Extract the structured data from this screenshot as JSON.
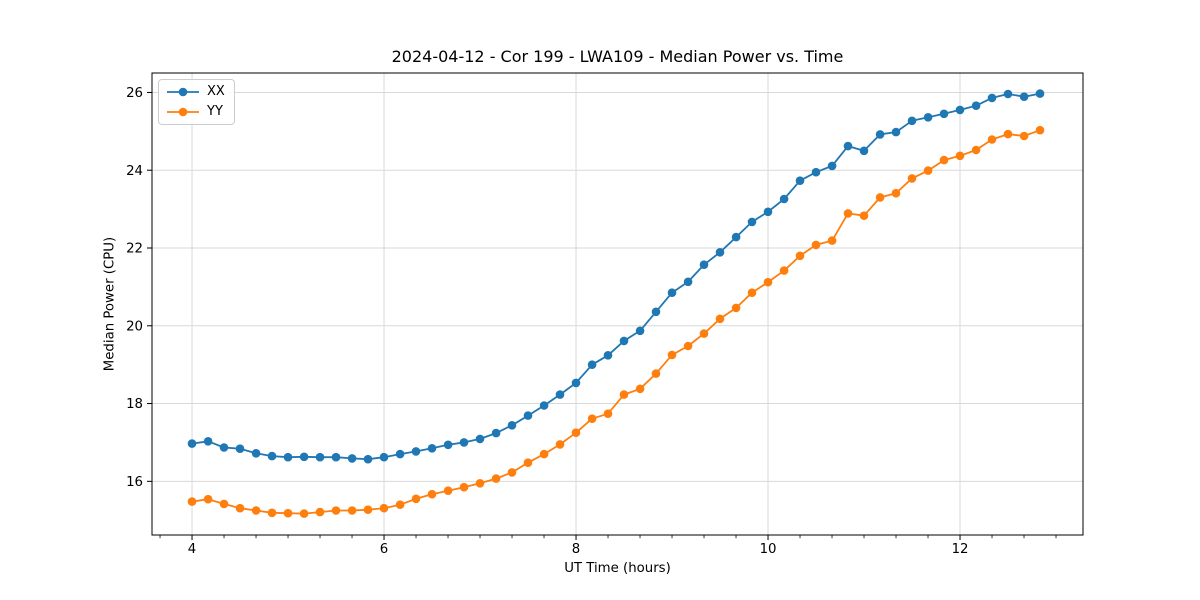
{
  "chart_data": {
    "type": "line",
    "title": "2024-04-12 - Cor 199 - LWA109 - Median Power vs. Time",
    "xlabel": "UT Time (hours)",
    "ylabel": "Median Power (CPU)",
    "xlim": [
      3.583,
      13.281
    ],
    "ylim": [
      14.62,
      26.5
    ],
    "x_major_ticks": [
      4,
      6,
      8,
      10,
      12
    ],
    "x_minor_tick_step": 0.33333,
    "y_major_ticks": [
      16,
      18,
      20,
      22,
      24,
      26
    ],
    "grid": true,
    "legend_position": "upper-left",
    "markers": "circle",
    "x": [
      4.0,
      4.167,
      4.333,
      4.5,
      4.667,
      4.833,
      5.0,
      5.167,
      5.333,
      5.5,
      5.667,
      5.833,
      6.0,
      6.167,
      6.333,
      6.5,
      6.667,
      6.833,
      7.0,
      7.167,
      7.333,
      7.5,
      7.667,
      7.833,
      8.0,
      8.167,
      8.333,
      8.5,
      8.667,
      8.833,
      9.0,
      9.167,
      9.333,
      9.5,
      9.667,
      9.833,
      10.0,
      10.167,
      10.333,
      10.5,
      10.667,
      10.833,
      11.0,
      11.167,
      11.333,
      11.5,
      11.667,
      11.833,
      12.0,
      12.167,
      12.333,
      12.5,
      12.667,
      12.833
    ],
    "series": [
      {
        "name": "XX",
        "color": "#1f77b4",
        "values": [
          16.97,
          17.03,
          16.87,
          16.84,
          16.72,
          16.65,
          16.62,
          16.63,
          16.62,
          16.62,
          16.59,
          16.57,
          16.62,
          16.7,
          16.77,
          16.85,
          16.94,
          17.0,
          17.09,
          17.24,
          17.44,
          17.69,
          17.95,
          18.23,
          18.53,
          19.0,
          19.24,
          19.61,
          19.87,
          20.36,
          20.85,
          21.13,
          21.57,
          21.89,
          22.28,
          22.67,
          22.93,
          23.26,
          23.73,
          23.95,
          24.11,
          24.62,
          24.5,
          24.92,
          24.98,
          25.27,
          25.36,
          25.45,
          25.55,
          25.66,
          25.86,
          25.96,
          25.89,
          25.97
        ]
      },
      {
        "name": "YY",
        "color": "#ff7f0e",
        "values": [
          15.48,
          15.54,
          15.42,
          15.31,
          15.25,
          15.19,
          15.18,
          15.17,
          15.21,
          15.25,
          15.25,
          15.27,
          15.31,
          15.4,
          15.55,
          15.67,
          15.76,
          15.85,
          15.95,
          16.07,
          16.23,
          16.48,
          16.7,
          16.95,
          17.25,
          17.61,
          17.74,
          18.23,
          18.38,
          18.77,
          19.25,
          19.48,
          19.8,
          20.18,
          20.46,
          20.85,
          21.12,
          21.42,
          21.8,
          22.08,
          22.19,
          22.89,
          22.83,
          23.3,
          23.41,
          23.79,
          23.99,
          24.26,
          24.37,
          24.52,
          24.79,
          24.93,
          24.88,
          25.03
        ]
      }
    ],
    "styles": {
      "grid_color": "#d9d9d9",
      "spine_color": "#000000",
      "tick_color": "#000000",
      "background": "#ffffff",
      "line_width": 1.8,
      "marker_radius": 4.3
    }
  }
}
